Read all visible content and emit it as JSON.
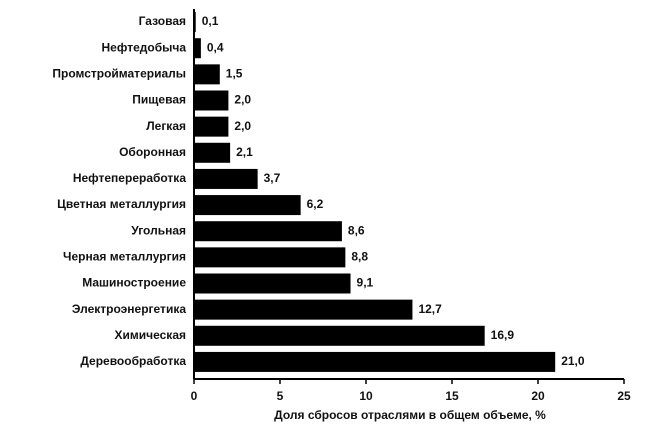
{
  "chart_data": {
    "type": "bar",
    "orientation": "horizontal",
    "x_label": "Доля сбросов отраслями в общем объеме, %",
    "categories": [
      "Газовая",
      "Нефтедобыча",
      "Промстройматериалы",
      "Пищевая",
      "Легкая",
      "Оборонная",
      "Нефтепереработка",
      "Цветная металлургия",
      "Угольная",
      "Черная металлургия",
      "Машиностроение",
      "Электроэнергетика",
      "Химическая",
      "Деревообработка"
    ],
    "values": [
      0.1,
      0.4,
      1.5,
      2.0,
      2.0,
      2.1,
      3.7,
      6.2,
      8.6,
      8.8,
      9.1,
      12.7,
      16.9,
      21.0
    ],
    "value_labels": [
      "0,1",
      "0,4",
      "1,5",
      "2,0",
      "2,0",
      "2,1",
      "3,7",
      "6,2",
      "8,6",
      "8,8",
      "9,1",
      "12,7",
      "16,9",
      "21,0"
    ],
    "color": "#000000",
    "xlim": [
      0,
      25
    ],
    "xticks": [
      0,
      5,
      10,
      15,
      20,
      25
    ]
  }
}
